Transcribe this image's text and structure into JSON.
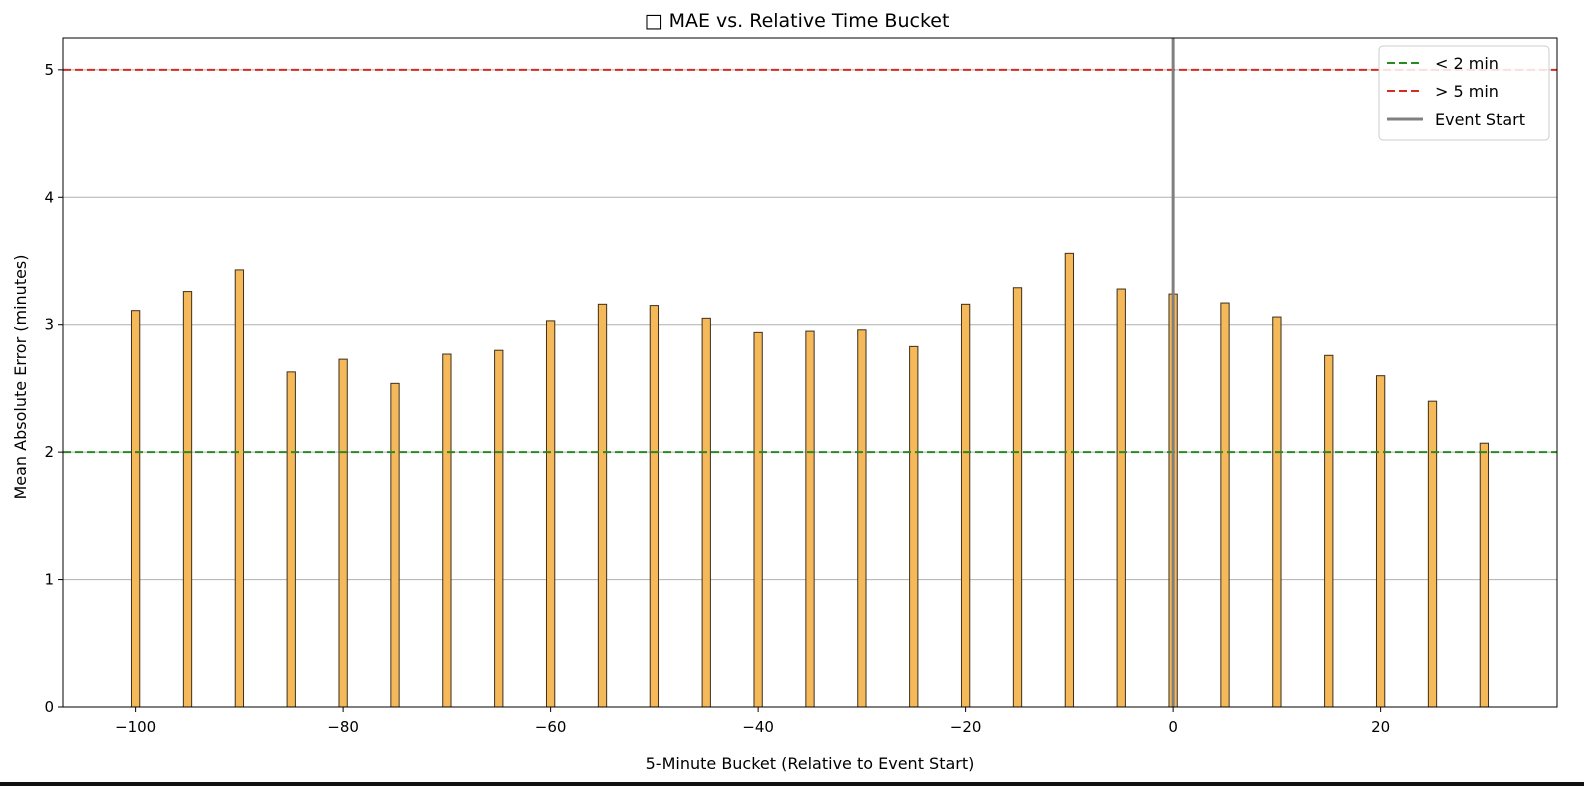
{
  "chart_data": {
    "type": "bar",
    "title": "□ MAE vs. Relative Time Bucket",
    "xlabel": "5-Minute Bucket (Relative to Event Start)",
    "ylabel": "Mean Absolute Error (minutes)",
    "xlim": [
      -107,
      37
    ],
    "ylim": [
      0,
      5.25
    ],
    "xticks": [
      -100,
      -80,
      -60,
      -40,
      -20,
      0,
      20
    ],
    "yticks": [
      0,
      1,
      2,
      3,
      4,
      5
    ],
    "x": [
      -100,
      -95,
      -90,
      -85,
      -80,
      -75,
      -70,
      -65,
      -60,
      -55,
      -50,
      -45,
      -40,
      -35,
      -30,
      -25,
      -20,
      -15,
      -10,
      -5,
      0,
      5,
      10,
      15,
      20,
      25,
      30
    ],
    "values": [
      3.11,
      3.26,
      3.43,
      2.63,
      2.73,
      2.54,
      2.77,
      2.8,
      3.03,
      3.16,
      3.15,
      3.05,
      2.94,
      2.95,
      2.96,
      2.83,
      3.16,
      3.29,
      3.56,
      3.28,
      3.24,
      3.17,
      3.06,
      2.76,
      2.6,
      2.4,
      2.07
    ],
    "bar_width": 0.8,
    "bar_color": "#f5b95a",
    "bar_edge_color": "#3b2f1e",
    "grid": "y",
    "reference_lines": [
      {
        "label": "< 2 min",
        "type": "hline",
        "y": 2,
        "color": "#2a8a22",
        "style": "dashed"
      },
      {
        "label": "> 5 min",
        "type": "hline",
        "y": 5,
        "color": "#d62b22",
        "style": "dashed"
      },
      {
        "label": "Event Start",
        "type": "vline",
        "x": 0,
        "color": "#808080",
        "style": "solid"
      }
    ],
    "legend_position": "top-right"
  }
}
